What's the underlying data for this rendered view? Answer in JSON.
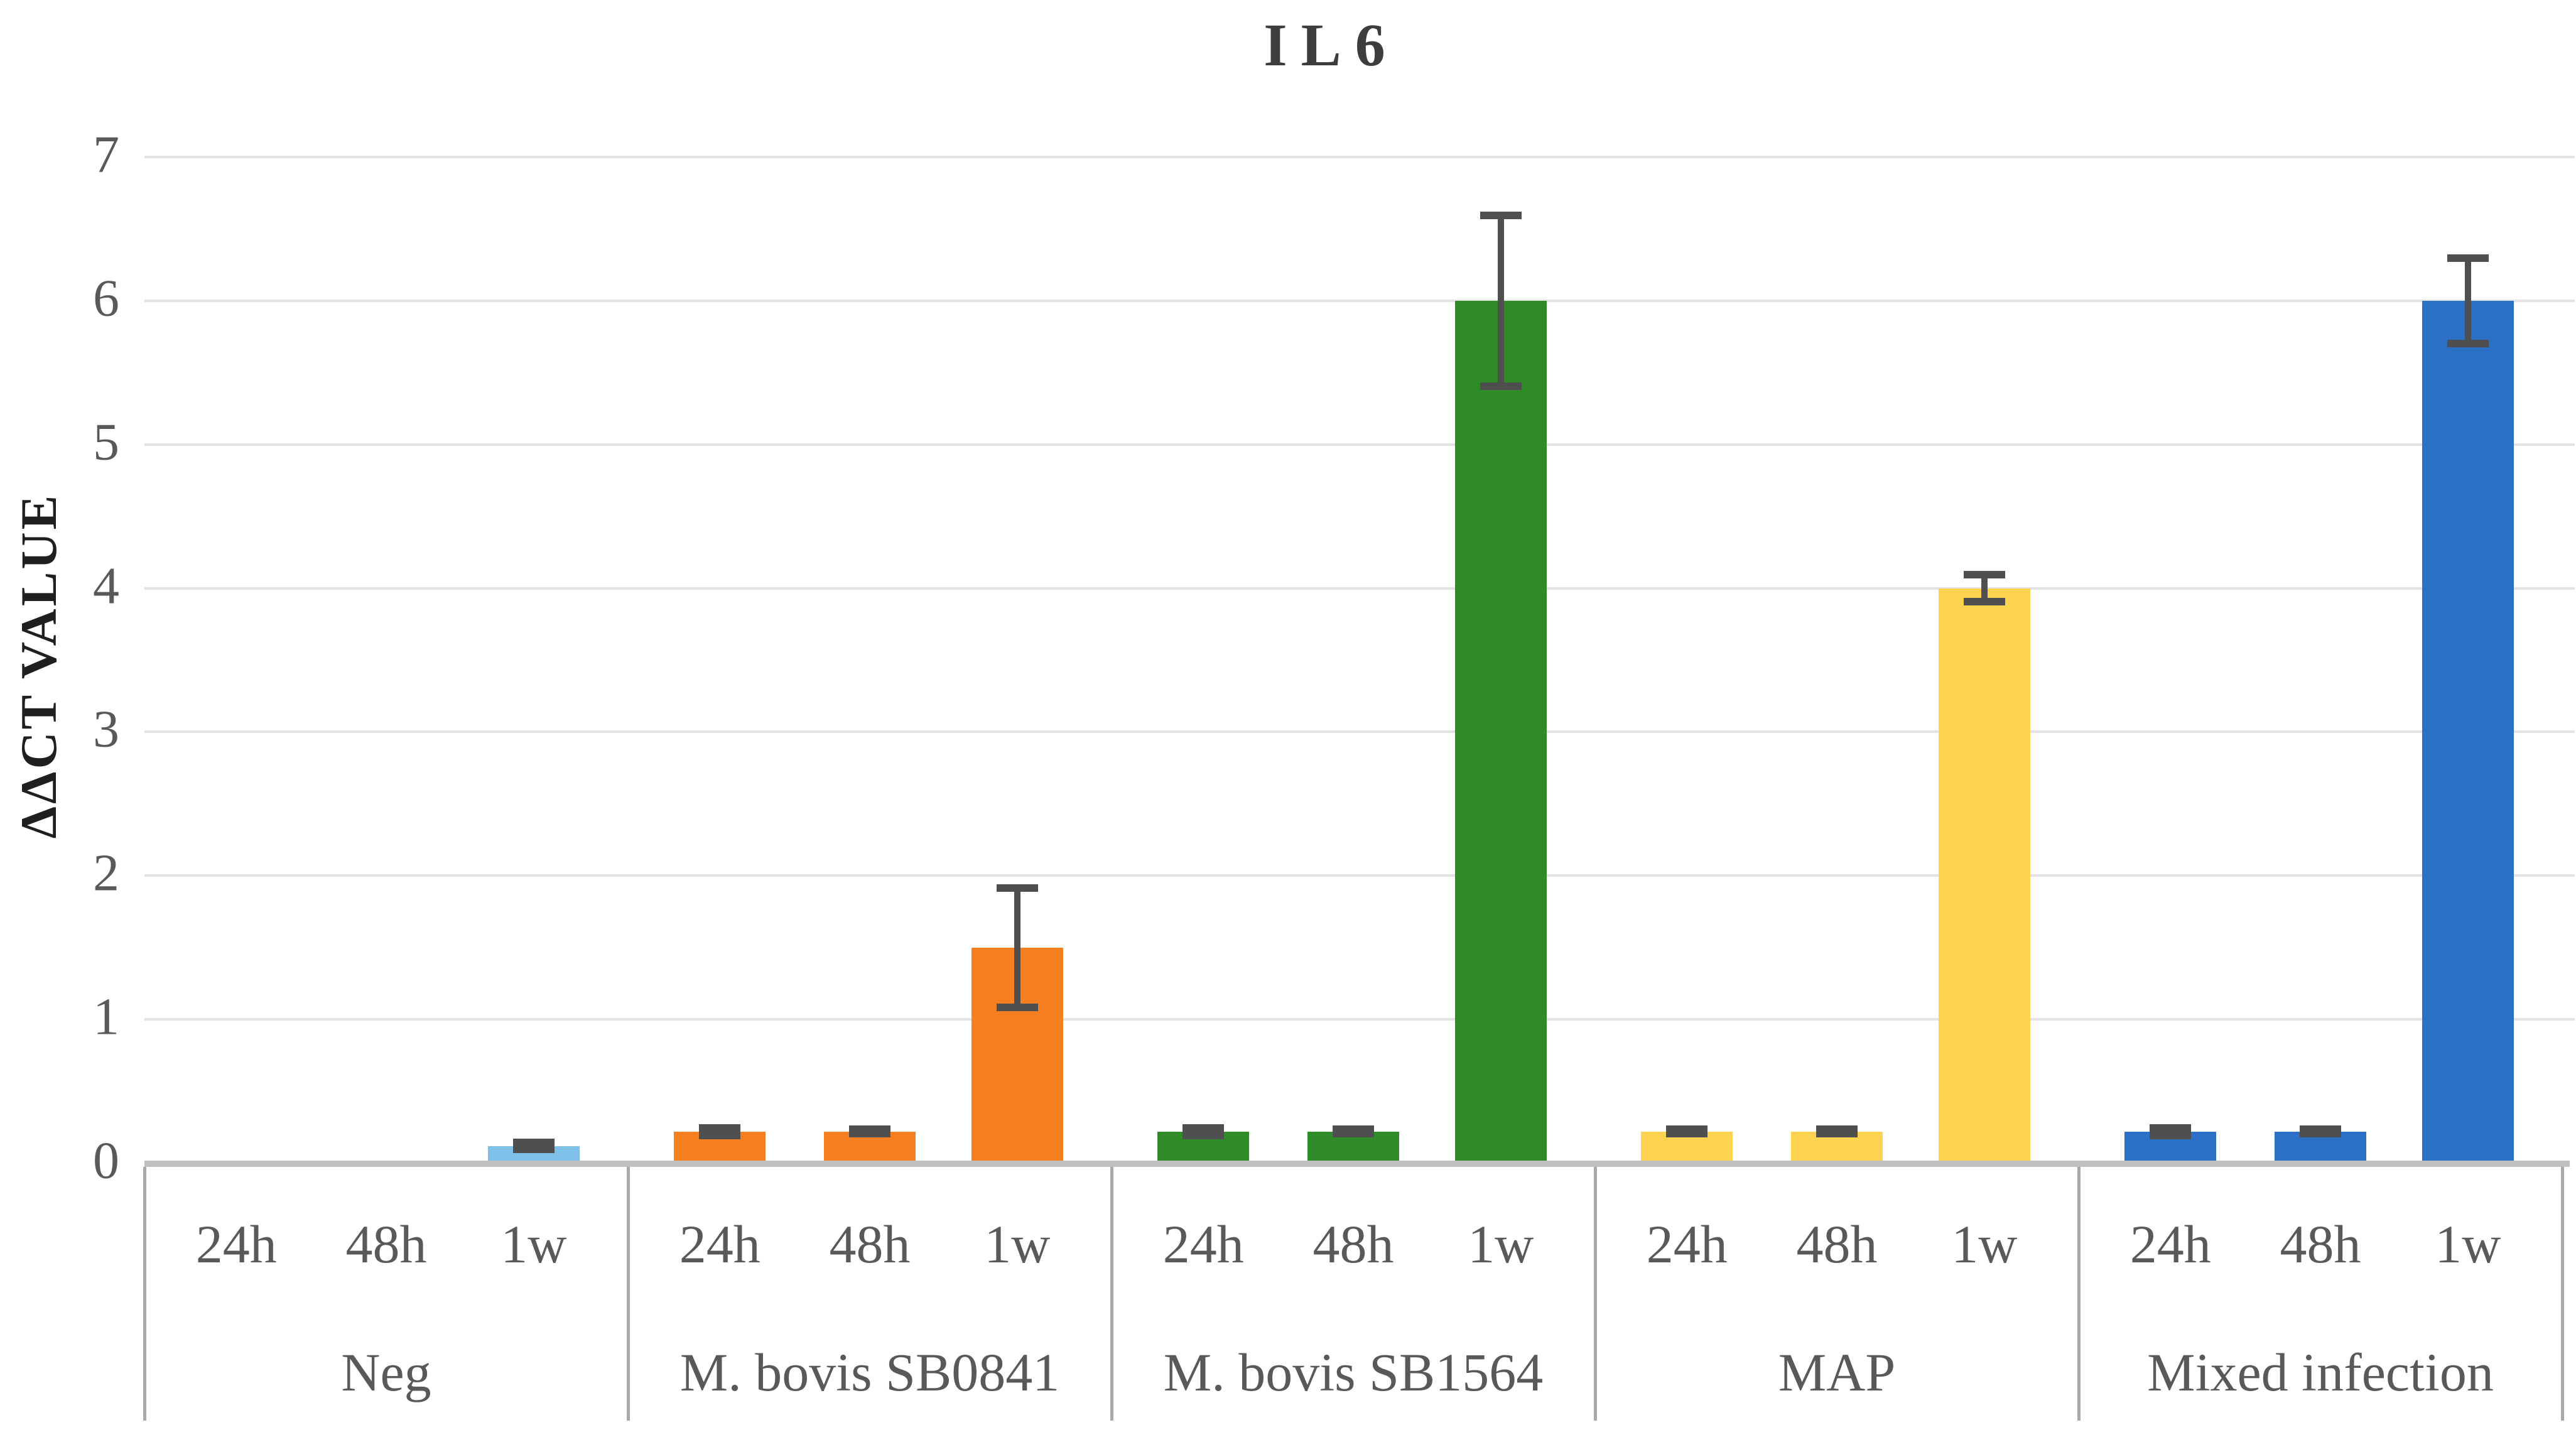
{
  "chart_data": {
    "type": "bar",
    "title": "IL6",
    "ylabel": "ΔΔCT VALUE",
    "xlabel": "",
    "ylim": [
      0,
      7
    ],
    "yticks": [
      0,
      1,
      2,
      3,
      4,
      5,
      6,
      7
    ],
    "grid": "horizontal",
    "legend": "none",
    "error_bar_color": "#4f4f4f",
    "gridline_color": "#e3e3e3",
    "baseline_color": "#bfbfbf",
    "label_color": "#595959",
    "time_labels": [
      "24h",
      "48h",
      "1w"
    ],
    "groups": [
      {
        "label": "Neg",
        "color": "#7ec0e8",
        "values": [
          0,
          0,
          0.12
        ],
        "errors": [
          null,
          null,
          0.03
        ]
      },
      {
        "label": "M. bovis SB0841",
        "color": "#f67f20",
        "values": [
          0.22,
          0.22,
          1.5
        ],
        "errors": [
          0.03,
          0.02,
          0.42
        ]
      },
      {
        "label": "M. bovis SB1564",
        "color": "#2f8a28",
        "values": [
          0.22,
          0.22,
          6.0
        ],
        "errors": [
          0.03,
          0.02,
          0.6
        ]
      },
      {
        "label": "MAP",
        "color": "#fed34f",
        "values": [
          0.22,
          0.22,
          4.0
        ],
        "errors": [
          0.02,
          0.02,
          0.1
        ]
      },
      {
        "label": "Mixed infection",
        "color": "#2b70c6",
        "values": [
          0.22,
          0.22,
          6.0
        ],
        "errors": [
          0.03,
          0.02,
          0.3
        ]
      }
    ]
  }
}
